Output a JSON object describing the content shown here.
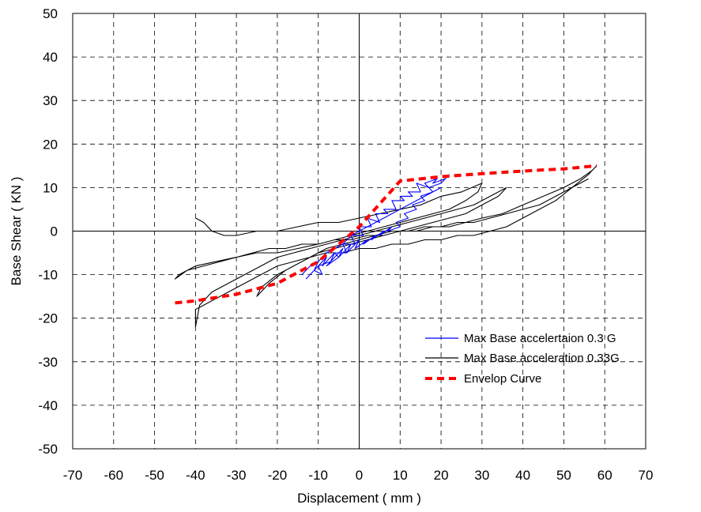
{
  "chart_data": {
    "type": "line",
    "title": "",
    "xlabel": "Displacement ( mm )",
    "ylabel": "Base Shear ( KN )",
    "xlim": [
      -70,
      70
    ],
    "ylim": [
      -50,
      50
    ],
    "x_ticks": [
      -70,
      -60,
      -50,
      -40,
      -30,
      -20,
      -10,
      0,
      10,
      20,
      30,
      40,
      50,
      60,
      70
    ],
    "y_ticks": [
      -50,
      -40,
      -30,
      -20,
      -10,
      0,
      10,
      20,
      30,
      40,
      50
    ],
    "grid": "dashed",
    "legend_position": "lower-right",
    "series": [
      {
        "name": "Max Base accelertaion 0.3 G",
        "color": "#0000ff",
        "style": "solid",
        "x": [
          -13,
          -11,
          -9,
          -10,
          -7,
          -8,
          -5,
          -6,
          -3,
          -4,
          -1,
          -2,
          1,
          0,
          3,
          2,
          5,
          4,
          7,
          6,
          9,
          8,
          11,
          10,
          13,
          12,
          15,
          14,
          17,
          16,
          19,
          18,
          21,
          22,
          20,
          17,
          18,
          15,
          16,
          13,
          14,
          11,
          12,
          9,
          10,
          7,
          8,
          5,
          6,
          3,
          4,
          1,
          2,
          -1,
          0,
          -3,
          -2,
          -5,
          -4,
          -7,
          -6,
          -9,
          -8,
          -11,
          -10,
          -12,
          -14,
          -12,
          -10,
          -8,
          -6,
          -4,
          -2,
          0,
          2,
          4,
          6,
          8,
          10,
          12,
          14,
          16,
          18,
          20
        ],
        "y": [
          -11,
          -9,
          -10,
          -8,
          -7,
          -8,
          -6,
          -5,
          -5,
          -3,
          -3,
          -1,
          -1,
          1,
          1,
          3,
          2,
          4,
          4,
          5,
          5,
          7,
          7,
          8,
          8,
          9,
          9,
          11,
          10,
          11,
          12,
          11,
          12,
          13,
          11,
          10,
          9,
          8,
          7,
          6,
          5,
          4,
          3,
          2,
          1,
          0,
          1,
          -1,
          0,
          -2,
          -1,
          -3,
          -2,
          -4,
          -2,
          -5,
          -3,
          -6,
          -4,
          -7,
          -5,
          -8,
          -6,
          -9,
          -7,
          -8,
          -10,
          -8,
          -7,
          -5,
          -4,
          -3,
          -1,
          0,
          1,
          2,
          3,
          4,
          5,
          6,
          7,
          8,
          9,
          10
        ]
      },
      {
        "name": "Max Base acceleration 0.33G",
        "color": "#000000",
        "style": "solid",
        "x": [
          -40,
          -38,
          -36,
          -33,
          -30,
          -25,
          -20,
          -15,
          -10,
          -5,
          0,
          5,
          10,
          15,
          20,
          25,
          30,
          29,
          26,
          22,
          18,
          14,
          10,
          6,
          2,
          -2,
          -6,
          -10,
          -15,
          -20,
          -25,
          -30,
          -35,
          -40,
          -44,
          -45,
          -42,
          -38,
          -34,
          -30,
          -26,
          -22,
          -18,
          -14,
          -10,
          -6,
          -2,
          2,
          6,
          10,
          14,
          18,
          22,
          26,
          30,
          35,
          40,
          45,
          50,
          54,
          57,
          58,
          56,
          52,
          48,
          44,
          40,
          36,
          32,
          28,
          24,
          20,
          16,
          12,
          8,
          4,
          0,
          -4,
          -8,
          -12,
          -16,
          -20,
          -24,
          -28,
          -32,
          -36,
          -40,
          -40,
          -39,
          -36,
          -32,
          -28,
          -24,
          -20,
          -16,
          -12,
          -8,
          -4,
          0,
          4,
          8,
          12,
          16,
          20,
          24,
          28,
          32,
          36,
          34,
          30,
          26,
          22,
          18,
          14,
          10,
          6,
          2,
          -2,
          -6,
          -10,
          -14,
          -18,
          -22,
          -25,
          -24,
          -20,
          -16,
          -12,
          -8,
          -4,
          0,
          4,
          8,
          12,
          16,
          20,
          24,
          28,
          32,
          36,
          40,
          44,
          48,
          52,
          56
        ],
        "y": [
          3,
          2,
          0,
          -1,
          -1,
          0,
          0,
          1,
          2,
          2,
          3,
          4,
          5,
          6,
          8,
          9,
          11,
          9,
          7,
          5,
          4,
          3,
          2,
          1,
          0,
          -1,
          -2,
          -3,
          -4,
          -5,
          -5,
          -6,
          -7,
          -8,
          -10,
          -11,
          -9,
          -8,
          -7,
          -6,
          -5,
          -4,
          -4,
          -3,
          -3,
          -2,
          -2,
          -1,
          -1,
          0,
          0,
          1,
          1,
          2,
          3,
          4,
          6,
          8,
          10,
          12,
          14,
          15,
          13,
          10,
          7,
          5,
          3,
          1,
          0,
          -1,
          -1,
          -2,
          -2,
          -3,
          -3,
          -4,
          -4,
          -5,
          -5,
          -6,
          -7,
          -8,
          -10,
          -12,
          -14,
          -16,
          -18,
          -22,
          -17,
          -14,
          -12,
          -10,
          -8,
          -6,
          -5,
          -4,
          -3,
          -2,
          -1,
          0,
          1,
          2,
          3,
          4,
          5,
          6,
          8,
          10,
          8,
          6,
          4,
          3,
          2,
          1,
          0,
          -1,
          -2,
          -3,
          -4,
          -5,
          -7,
          -9,
          -12,
          -15,
          -13,
          -10,
          -8,
          -6,
          -4,
          -3,
          -2,
          -1,
          0,
          0,
          1,
          1,
          2,
          2,
          3,
          4,
          5,
          6,
          8,
          10,
          12
        ]
      },
      {
        "name": "Envelop Curve",
        "color": "#ff0000",
        "style": "dashed",
        "x": [
          -45,
          -40,
          -30,
          -20,
          -10,
          0,
          10,
          20,
          30,
          40,
          50,
          58
        ],
        "y": [
          -16.5,
          -16,
          -14.5,
          -12,
          -7,
          1,
          11.5,
          12.5,
          13.2,
          13.8,
          14.3,
          15
        ]
      }
    ]
  }
}
